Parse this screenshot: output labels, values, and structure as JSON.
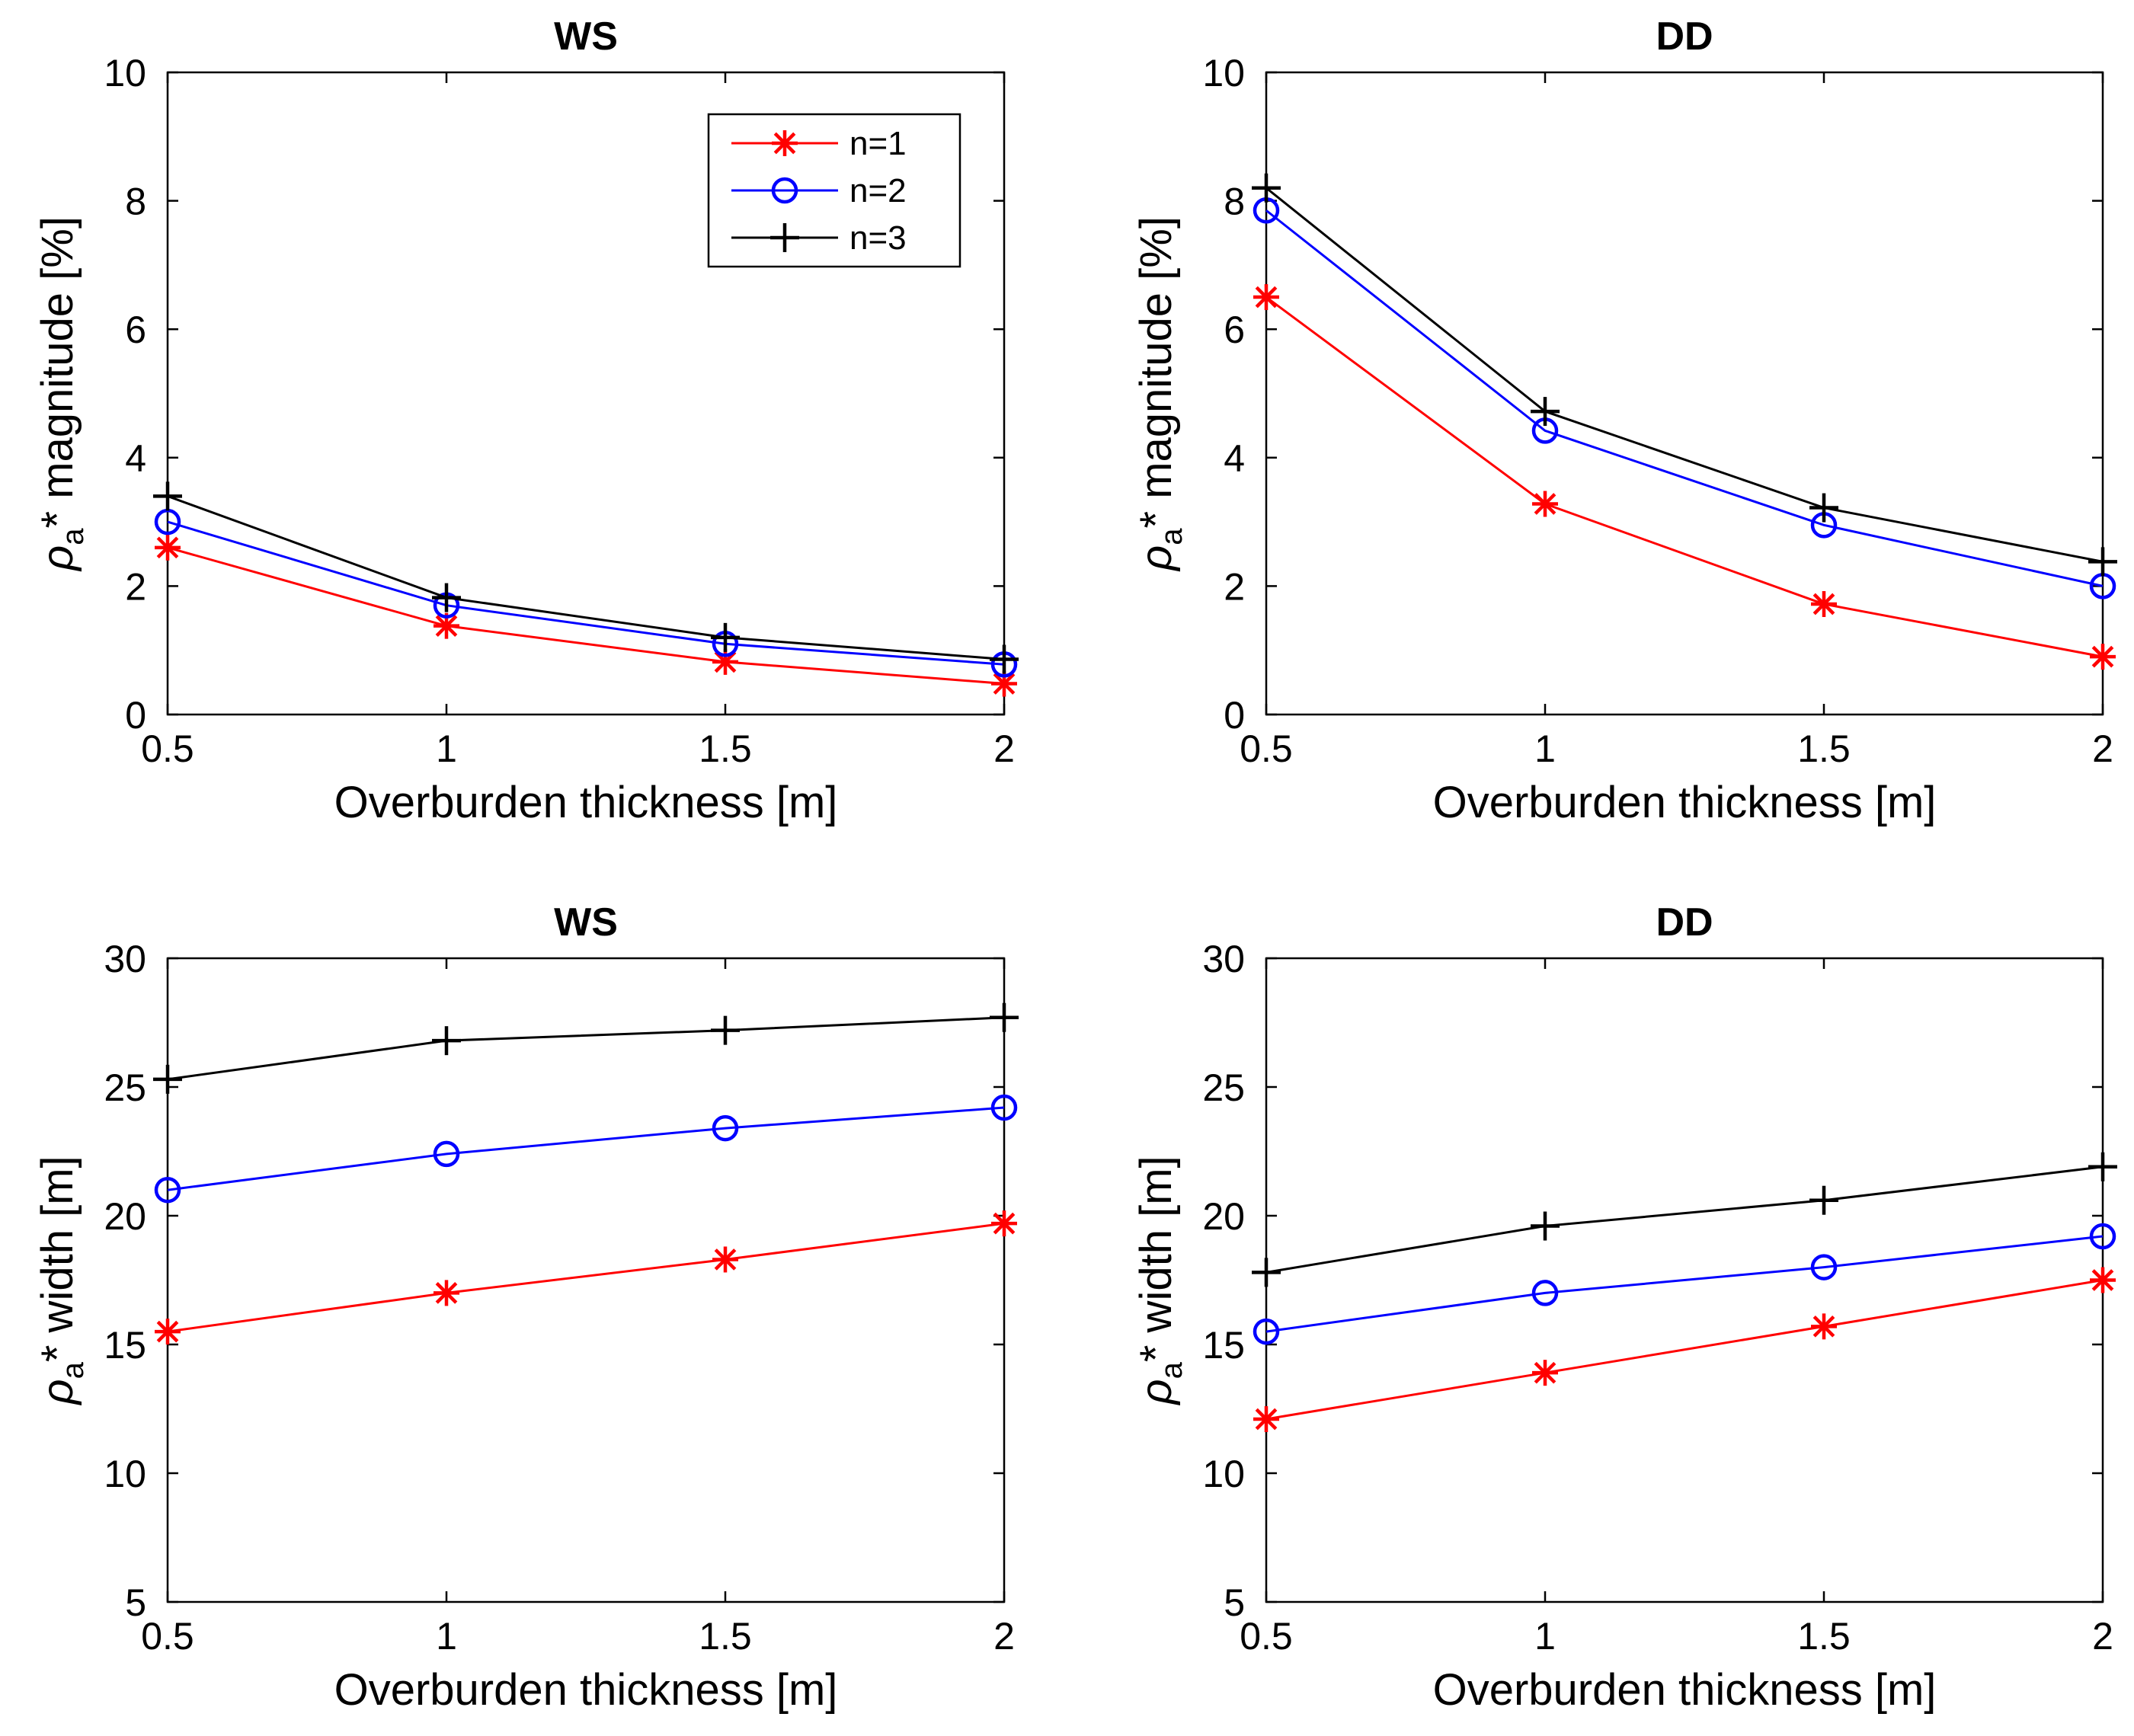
{
  "chart_data": [
    {
      "type": "line",
      "title": "WS",
      "xlabel": "Overburden thickness [m]",
      "ylabel_symbol": "ρ",
      "ylabel_subscript": "a",
      "ylabel_suffix": "* magnitude [%]",
      "x": [
        0.5,
        1,
        1.5,
        2
      ],
      "xticks": [
        "0.5",
        "1",
        "1.5",
        "2"
      ],
      "xlim": [
        0.5,
        2
      ],
      "ylim": [
        0,
        10
      ],
      "yticks": [
        "0",
        "2",
        "4",
        "6",
        "8",
        "10"
      ],
      "legend": "top-right",
      "series": [
        {
          "name": "n=1",
          "color": "#ff0000",
          "marker": "asterisk",
          "values": [
            2.6,
            1.38,
            0.82,
            0.48
          ]
        },
        {
          "name": "n=2",
          "color": "#0000ff",
          "marker": "circle",
          "values": [
            3.0,
            1.7,
            1.1,
            0.78
          ]
        },
        {
          "name": "n=3",
          "color": "#000000",
          "marker": "plus",
          "values": [
            3.4,
            1.82,
            1.2,
            0.86
          ]
        }
      ]
    },
    {
      "type": "line",
      "title": "DD",
      "xlabel": "Overburden thickness [m]",
      "ylabel_symbol": "ρ",
      "ylabel_subscript": "a",
      "ylabel_suffix": "* magnitude [%]",
      "x": [
        0.5,
        1,
        1.5,
        2
      ],
      "xticks": [
        "0.5",
        "1",
        "1.5",
        "2"
      ],
      "xlim": [
        0.5,
        2
      ],
      "ylim": [
        0,
        10
      ],
      "yticks": [
        "0",
        "2",
        "4",
        "6",
        "8",
        "10"
      ],
      "series": [
        {
          "name": "n=1",
          "color": "#ff0000",
          "marker": "asterisk",
          "values": [
            6.5,
            3.28,
            1.72,
            0.9
          ]
        },
        {
          "name": "n=2",
          "color": "#0000ff",
          "marker": "circle",
          "values": [
            7.85,
            4.42,
            2.95,
            2.0
          ]
        },
        {
          "name": "n=3",
          "color": "#000000",
          "marker": "plus",
          "values": [
            8.2,
            4.72,
            3.22,
            2.38
          ]
        }
      ]
    },
    {
      "type": "line",
      "title": "WS",
      "xlabel": "Overburden thickness [m]",
      "ylabel_symbol": "ρ",
      "ylabel_subscript": "a",
      "ylabel_suffix": "* width [m]",
      "x": [
        0.5,
        1,
        1.5,
        2
      ],
      "xticks": [
        "0.5",
        "1",
        "1.5",
        "2"
      ],
      "xlim": [
        0.5,
        2
      ],
      "ylim": [
        5,
        30
      ],
      "yticks": [
        "5",
        "10",
        "15",
        "20",
        "25",
        "30"
      ],
      "series": [
        {
          "name": "n=1",
          "color": "#ff0000",
          "marker": "asterisk",
          "values": [
            15.5,
            17.0,
            18.3,
            19.7
          ]
        },
        {
          "name": "n=2",
          "color": "#0000ff",
          "marker": "circle",
          "values": [
            21.0,
            22.4,
            23.4,
            24.2
          ]
        },
        {
          "name": "n=3",
          "color": "#000000",
          "marker": "plus",
          "values": [
            25.3,
            26.8,
            27.2,
            27.7
          ]
        }
      ]
    },
    {
      "type": "line",
      "title": "DD",
      "xlabel": "Overburden thickness [m]",
      "ylabel_symbol": "ρ",
      "ylabel_subscript": "a",
      "ylabel_suffix": "* width [m]",
      "x": [
        0.5,
        1,
        1.5,
        2
      ],
      "xticks": [
        "0.5",
        "1",
        "1.5",
        "2"
      ],
      "xlim": [
        0.5,
        2
      ],
      "ylim": [
        5,
        30
      ],
      "yticks": [
        "5",
        "10",
        "15",
        "20",
        "25",
        "30"
      ],
      "series": [
        {
          "name": "n=1",
          "color": "#ff0000",
          "marker": "asterisk",
          "values": [
            12.1,
            13.9,
            15.7,
            17.5
          ]
        },
        {
          "name": "n=2",
          "color": "#0000ff",
          "marker": "circle",
          "values": [
            15.5,
            17.0,
            18.0,
            19.2
          ]
        },
        {
          "name": "n=3",
          "color": "#000000",
          "marker": "plus",
          "values": [
            17.8,
            19.6,
            20.6,
            21.9
          ]
        }
      ]
    }
  ]
}
